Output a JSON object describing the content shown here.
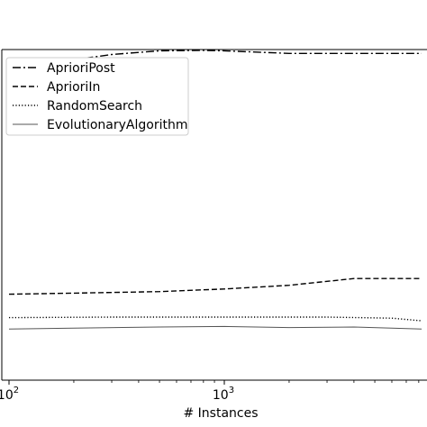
{
  "chart_data": {
    "type": "line",
    "title": "",
    "xlabel": "# Instances",
    "ylabel": "",
    "xscale": "log",
    "x_ticks": [
      {
        "value": 100,
        "base": "10",
        "exp": "2"
      },
      {
        "value": 1000,
        "base": "10",
        "exp": "3"
      }
    ],
    "xlim": [
      100,
      9000
    ],
    "ylim": [
      0,
      1
    ],
    "grid": false,
    "legend_position": "upper-left",
    "series": [
      {
        "name": "AprioriPost",
        "style": "dashdot",
        "color": "#000000",
        "x": [
          100,
          200,
          300,
          500,
          800,
          1000,
          2000,
          4000,
          9000
        ],
        "y": [
          0.6,
          0.615,
          0.625,
          0.632,
          0.633,
          0.632,
          0.627,
          0.627,
          0.627
        ]
      },
      {
        "name": "AprioriIn",
        "style": "dashed",
        "color": "#000000",
        "x": [
          100,
          200,
          500,
          1000,
          2000,
          4000,
          9000
        ],
        "y": [
          0.165,
          0.167,
          0.17,
          0.175,
          0.182,
          0.195,
          0.195
        ]
      },
      {
        "name": "RandomSearch",
        "style": "dotted",
        "color": "#000000",
        "x": [
          100,
          300,
          1000,
          3000,
          6000,
          9000
        ],
        "y": [
          0.12,
          0.121,
          0.121,
          0.121,
          0.119,
          0.114
        ]
      },
      {
        "name": "EvolutionaryAlgorithm",
        "style": "solid",
        "color": "#555555",
        "x": [
          100,
          200,
          500,
          1000,
          2000,
          4000,
          6000,
          9000
        ],
        "y": [
          0.098,
          0.1,
          0.102,
          0.103,
          0.101,
          0.102,
          0.1,
          0.098
        ]
      }
    ]
  }
}
